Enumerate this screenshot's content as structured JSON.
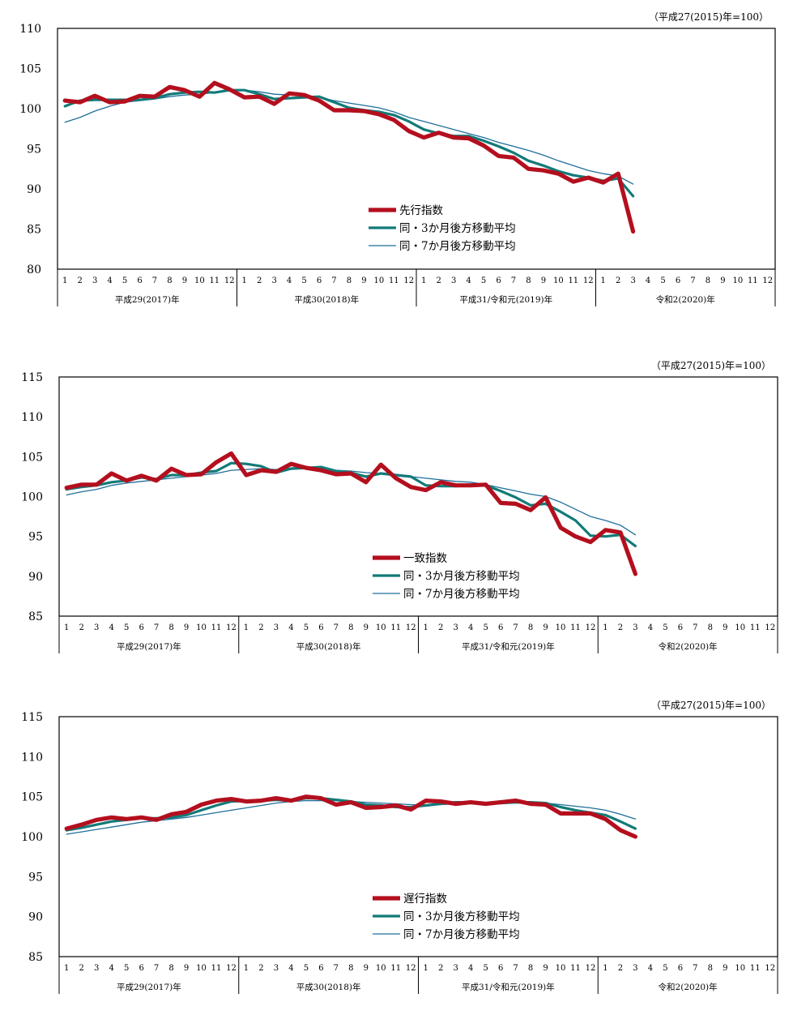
{
  "chart_data": [
    {
      "type": "line",
      "unit_note": "（平成27(2015)年=100）",
      "ylim": [
        80,
        110
      ],
      "yticks": [
        80,
        85,
        90,
        95,
        100,
        105,
        110
      ],
      "years": [
        "平成29(2017)年",
        "平成30(2018)年",
        "平成31/令和元(2019)年",
        "令和2(2020)年"
      ],
      "months": [
        "1",
        "2",
        "3",
        "4",
        "5",
        "6",
        "7",
        "8",
        "9",
        "10",
        "11",
        "12"
      ],
      "series": [
        {
          "name": "先行指数",
          "color": "#b40f1e",
          "width": "thick",
          "values": [
            101.0,
            100.8,
            101.6,
            100.8,
            100.9,
            101.6,
            101.5,
            102.7,
            102.3,
            101.5,
            103.2,
            102.4,
            101.4,
            101.5,
            100.6,
            101.9,
            101.7,
            101.0,
            99.8,
            99.8,
            99.7,
            99.3,
            98.6,
            97.2,
            96.4,
            97.0,
            96.4,
            96.3,
            95.4,
            94.1,
            93.9,
            92.5,
            92.3,
            91.9,
            90.9,
            91.4,
            90.8,
            91.9,
            84.7
          ]
        },
        {
          "name": "同・3か月後方移動平均",
          "color": "#127a78",
          "width": "medium",
          "values": [
            100.3,
            101.0,
            101.1,
            101.1,
            101.1,
            101.1,
            101.3,
            101.8,
            102.0,
            102.1,
            102.0,
            102.3,
            102.3,
            101.8,
            101.2,
            101.3,
            101.4,
            101.5,
            100.8,
            100.1,
            99.8,
            99.6,
            99.2,
            98.4,
            97.4,
            96.9,
            96.6,
            96.6,
            96.0,
            95.3,
            94.5,
            93.5,
            92.9,
            92.2,
            91.7,
            91.4,
            91.0,
            91.3,
            89.1
          ]
        },
        {
          "name": "同・7か月後方移動平均",
          "color": "#1f6f9a",
          "width": "thin",
          "values": [
            98.3,
            98.9,
            99.7,
            100.3,
            100.8,
            101.0,
            101.2,
            101.5,
            101.7,
            101.8,
            102.0,
            102.3,
            102.3,
            102.1,
            101.8,
            101.7,
            101.6,
            101.4,
            101.0,
            100.7,
            100.4,
            100.1,
            99.6,
            98.9,
            98.4,
            97.9,
            97.4,
            96.9,
            96.4,
            95.8,
            95.3,
            94.8,
            94.2,
            93.5,
            92.9,
            92.3,
            91.9,
            91.6,
            90.6
          ]
        }
      ]
    },
    {
      "type": "line",
      "unit_note": "（平成27(2015)年=100）",
      "ylim": [
        85,
        115
      ],
      "yticks": [
        85,
        90,
        95,
        100,
        105,
        110,
        115
      ],
      "years": [
        "平成29(2017)年",
        "平成30(2018)年",
        "平成31/令和元(2019)年",
        "令和2(2020)年"
      ],
      "months": [
        "1",
        "2",
        "3",
        "4",
        "5",
        "6",
        "7",
        "8",
        "9",
        "10",
        "11",
        "12"
      ],
      "series": [
        {
          "name": "一致指数",
          "color": "#b40f1e",
          "width": "thick",
          "values": [
            101.1,
            101.5,
            101.5,
            102.9,
            102.0,
            102.6,
            102.0,
            103.5,
            102.7,
            102.8,
            104.3,
            105.4,
            102.7,
            103.3,
            103.1,
            104.1,
            103.6,
            103.3,
            102.8,
            102.9,
            101.8,
            104.0,
            102.3,
            101.2,
            100.8,
            101.8,
            101.4,
            101.4,
            101.5,
            99.2,
            99.1,
            98.3,
            99.9,
            96.1,
            95.0,
            94.3,
            95.8,
            95.5,
            90.3
          ]
        },
        {
          "name": "同・3か月後方移動平均",
          "color": "#127a78",
          "width": "medium",
          "values": [
            100.9,
            101.2,
            101.4,
            101.8,
            102.0,
            102.4,
            102.2,
            102.7,
            102.7,
            103.0,
            103.2,
            104.2,
            104.1,
            103.8,
            103.0,
            103.5,
            103.6,
            103.7,
            103.2,
            103.0,
            102.5,
            102.9,
            102.7,
            102.5,
            101.4,
            101.3,
            101.3,
            101.5,
            101.4,
            100.7,
            99.9,
            98.9,
            99.1,
            98.1,
            97.0,
            95.1,
            95.0,
            95.2,
            93.8
          ]
        },
        {
          "name": "同・7か月後方移動平均",
          "color": "#1f6f9a",
          "width": "thin",
          "values": [
            100.2,
            100.6,
            100.9,
            101.4,
            101.7,
            101.9,
            102.1,
            102.3,
            102.5,
            102.7,
            102.9,
            103.3,
            103.4,
            103.5,
            103.4,
            103.6,
            103.7,
            103.6,
            103.3,
            103.2,
            103.0,
            102.9,
            102.8,
            102.5,
            102.3,
            102.1,
            101.9,
            101.8,
            101.5,
            101.1,
            100.7,
            100.3,
            100.0,
            99.3,
            98.4,
            97.5,
            97.0,
            96.4,
            95.2
          ]
        }
      ]
    },
    {
      "type": "line",
      "unit_note": "（平成27(2015)年=100）",
      "ylim": [
        85,
        115
      ],
      "yticks": [
        85,
        90,
        95,
        100,
        105,
        110,
        115
      ],
      "years": [
        "平成29(2017)年",
        "平成30(2018)年",
        "平成31/令和元(2019)年",
        "令和2(2020)年"
      ],
      "months": [
        "1",
        "2",
        "3",
        "4",
        "5",
        "6",
        "7",
        "8",
        "9",
        "10",
        "11",
        "12"
      ],
      "series": [
        {
          "name": "遅行指数",
          "color": "#b40f1e",
          "width": "thick",
          "values": [
            101.0,
            101.5,
            102.1,
            102.4,
            102.2,
            102.4,
            102.1,
            102.8,
            103.1,
            104.0,
            104.5,
            104.7,
            104.4,
            104.5,
            104.8,
            104.5,
            105.0,
            104.8,
            104.0,
            104.3,
            103.6,
            103.7,
            103.9,
            103.4,
            104.5,
            104.4,
            104.1,
            104.3,
            104.1,
            104.3,
            104.5,
            104.1,
            104.0,
            102.9,
            102.9,
            102.9,
            102.2,
            100.8,
            100.0
          ]
        },
        {
          "name": "同・3か月後方移動平均",
          "color": "#127a78",
          "width": "medium",
          "values": [
            100.8,
            101.1,
            101.5,
            101.9,
            102.1,
            102.3,
            102.3,
            102.4,
            102.7,
            103.3,
            103.9,
            104.4,
            104.5,
            104.5,
            104.6,
            104.5,
            104.8,
            104.8,
            104.6,
            104.4,
            104.0,
            103.9,
            103.7,
            103.7,
            103.9,
            104.1,
            104.3,
            104.3,
            104.2,
            104.2,
            104.3,
            104.3,
            104.2,
            103.7,
            103.3,
            103.0,
            102.7,
            101.9,
            101.0
          ]
        },
        {
          "name": "同・7か月後方移動平均",
          "color": "#1f6f9a",
          "width": "thin",
          "values": [
            100.3,
            100.6,
            100.9,
            101.2,
            101.5,
            101.8,
            102.0,
            102.2,
            102.4,
            102.7,
            103.0,
            103.3,
            103.6,
            103.9,
            104.2,
            104.4,
            104.5,
            104.5,
            104.5,
            104.4,
            104.3,
            104.2,
            104.1,
            104.0,
            103.9,
            104.0,
            104.1,
            104.1,
            104.2,
            104.2,
            104.2,
            104.2,
            104.2,
            104.0,
            103.8,
            103.6,
            103.3,
            102.8,
            102.2
          ]
        }
      ]
    }
  ]
}
